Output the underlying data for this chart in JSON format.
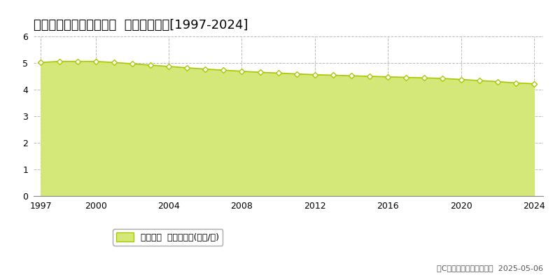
{
  "title": "東彼杞郡川棚町五反田郷  基準地価推移[1997-2024]",
  "years": [
    1997,
    1998,
    1999,
    2000,
    2001,
    2002,
    2003,
    2004,
    2005,
    2006,
    2007,
    2008,
    2009,
    2010,
    2011,
    2012,
    2013,
    2014,
    2015,
    2016,
    2017,
    2018,
    2019,
    2020,
    2021,
    2022,
    2023,
    2024
  ],
  "values": [
    5.02,
    5.06,
    5.06,
    5.06,
    5.02,
    4.97,
    4.92,
    4.87,
    4.82,
    4.77,
    4.73,
    4.69,
    4.65,
    4.62,
    4.59,
    4.56,
    4.54,
    4.52,
    4.5,
    4.48,
    4.46,
    4.44,
    4.42,
    4.38,
    4.34,
    4.3,
    4.25,
    4.22
  ],
  "line_color": "#a8c800",
  "fill_color": "#d4e87a",
  "marker_facecolor": "#ffffff",
  "marker_edgecolor": "#a8c800",
  "bg_color": "#ffffff",
  "grid_color": "#bbbbbb",
  "ylim": [
    0,
    6
  ],
  "yticks": [
    0,
    1,
    2,
    3,
    4,
    5,
    6
  ],
  "xticks": [
    1997,
    2000,
    2004,
    2008,
    2012,
    2016,
    2020,
    2024
  ],
  "legend_label": "基準地価  平均坪単価(万円/坪)",
  "copyright_text": "（C）土地価格ドットコム  2025-05-06",
  "title_fontsize": 13,
  "label_fontsize": 9,
  "tick_fontsize": 9,
  "copyright_fontsize": 8
}
